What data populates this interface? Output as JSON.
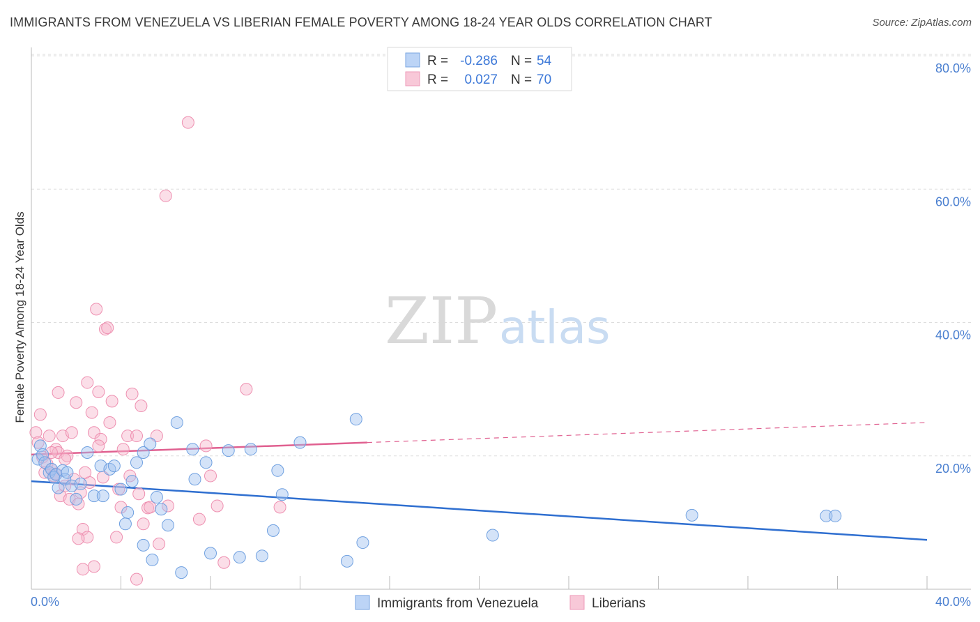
{
  "chart_data": {
    "type": "scatter",
    "title": "IMMIGRANTS FROM VENEZUELA VS LIBERIAN FEMALE POVERTY AMONG 18-24 YEAR OLDS CORRELATION CHART",
    "source": "Source: ZipAtlas.com",
    "watermark": {
      "zip": "ZIP",
      "atlas": "atlas"
    },
    "xlabel": "",
    "ylabel": "Female Poverty Among 18-24 Year Olds",
    "xlim": [
      0,
      40
    ],
    "ylim": [
      0,
      80
    ],
    "x_tick_labels": {
      "left": "0.0%",
      "right": "40.0%"
    },
    "y_ticks": [
      20,
      40,
      60,
      80
    ],
    "y_tick_labels": [
      "20.0%",
      "40.0%",
      "60.0%",
      "80.0%"
    ],
    "legend": {
      "rows": [
        {
          "r_label": "R =",
          "r_value": "-0.286",
          "n_label": "N =",
          "n_value": "54"
        },
        {
          "r_label": "R =",
          "r_value": "0.027",
          "n_label": "N =",
          "n_value": "70"
        }
      ]
    },
    "series": [
      {
        "name": "Immigrants from Venezuela",
        "color": "#9fc2f0",
        "stroke": "#6fa0e0",
        "line_color": "#2f6fd0",
        "trend": {
          "x0": 0,
          "y0": 16.2,
          "x1": 40,
          "y1": 7.4,
          "solid_to": 40
        },
        "points": [
          [
            0.3,
            19.5
          ],
          [
            0.4,
            21.5
          ],
          [
            0.5,
            20.2
          ],
          [
            0.6,
            19.0
          ],
          [
            0.8,
            17.5
          ],
          [
            0.9,
            18.0
          ],
          [
            1.0,
            16.8
          ],
          [
            1.1,
            17.2
          ],
          [
            1.2,
            15.2
          ],
          [
            1.4,
            17.8
          ],
          [
            1.5,
            16.5
          ],
          [
            1.6,
            17.5
          ],
          [
            1.8,
            15.5
          ],
          [
            2.0,
            13.5
          ],
          [
            2.2,
            15.8
          ],
          [
            2.8,
            14.0
          ],
          [
            2.5,
            20.5
          ],
          [
            3.1,
            18.5
          ],
          [
            3.2,
            14.0
          ],
          [
            3.5,
            18.0
          ],
          [
            3.7,
            18.5
          ],
          [
            4.0,
            15.0
          ],
          [
            4.3,
            11.5
          ],
          [
            4.5,
            16.2
          ],
          [
            4.7,
            19.0
          ],
          [
            5.0,
            20.5
          ],
          [
            4.2,
            9.8
          ],
          [
            5.3,
            21.8
          ],
          [
            5.6,
            13.8
          ],
          [
            5.8,
            12.0
          ],
          [
            6.1,
            9.6
          ],
          [
            6.5,
            25.0
          ],
          [
            7.2,
            21.0
          ],
          [
            7.3,
            16.5
          ],
          [
            7.8,
            19.0
          ],
          [
            8.0,
            5.4
          ],
          [
            8.8,
            20.8
          ],
          [
            9.3,
            4.8
          ],
          [
            9.8,
            21.0
          ],
          [
            10.3,
            5.0
          ],
          [
            10.8,
            8.8
          ],
          [
            11.0,
            17.8
          ],
          [
            11.2,
            14.2
          ],
          [
            12.0,
            22.0
          ],
          [
            14.1,
            4.2
          ],
          [
            14.5,
            25.5
          ],
          [
            14.8,
            7.0
          ],
          [
            20.6,
            8.1
          ],
          [
            29.5,
            11.1
          ],
          [
            35.5,
            11.0
          ],
          [
            35.9,
            11.0
          ],
          [
            5.4,
            4.4
          ],
          [
            6.7,
            2.5
          ],
          [
            5.0,
            6.6
          ]
        ]
      },
      {
        "name": "Liberians",
        "color": "#f6b6cb",
        "stroke": "#ee8fb0",
        "line_color": "#e06090",
        "trend": {
          "x0": 0,
          "y0": 20.2,
          "x1": 40,
          "y1": 25.0,
          "solid_to": 15
        },
        "points": [
          [
            0.2,
            23.5
          ],
          [
            0.3,
            22.0
          ],
          [
            0.4,
            26.2
          ],
          [
            0.5,
            19.8
          ],
          [
            0.6,
            17.5
          ],
          [
            0.7,
            18.8
          ],
          [
            0.8,
            23.0
          ],
          [
            0.9,
            18.0
          ],
          [
            1.0,
            17.0
          ],
          [
            1.1,
            21.0
          ],
          [
            1.2,
            20.5
          ],
          [
            1.3,
            14.0
          ],
          [
            1.4,
            23.0
          ],
          [
            1.5,
            15.5
          ],
          [
            1.6,
            20.0
          ],
          [
            1.7,
            13.5
          ],
          [
            1.8,
            23.5
          ],
          [
            1.9,
            16.5
          ],
          [
            2.0,
            28.0
          ],
          [
            2.1,
            12.8
          ],
          [
            2.2,
            14.5
          ],
          [
            1.2,
            29.5
          ],
          [
            2.5,
            31.0
          ],
          [
            2.6,
            16.0
          ],
          [
            2.7,
            26.5
          ],
          [
            2.8,
            23.5
          ],
          [
            2.9,
            42.0
          ],
          [
            3.0,
            29.6
          ],
          [
            3.1,
            22.5
          ],
          [
            3.2,
            16.8
          ],
          [
            3.3,
            39.0
          ],
          [
            3.4,
            39.2
          ],
          [
            3.5,
            25.0
          ],
          [
            3.6,
            28.2
          ],
          [
            3.8,
            7.8
          ],
          [
            3.9,
            15.0
          ],
          [
            4.0,
            12.3
          ],
          [
            4.1,
            21.0
          ],
          [
            4.3,
            23.0
          ],
          [
            4.4,
            17.0
          ],
          [
            4.5,
            29.3
          ],
          [
            4.7,
            23.0
          ],
          [
            4.8,
            14.3
          ],
          [
            4.9,
            27.5
          ],
          [
            5.0,
            9.8
          ],
          [
            5.2,
            12.2
          ],
          [
            5.3,
            12.3
          ],
          [
            5.6,
            23.0
          ],
          [
            5.7,
            6.8
          ],
          [
            6.0,
            59.0
          ],
          [
            6.1,
            12.5
          ],
          [
            7.0,
            70.0
          ],
          [
            7.5,
            10.5
          ],
          [
            7.8,
            21.5
          ],
          [
            8.0,
            17.0
          ],
          [
            8.3,
            12.5
          ],
          [
            8.6,
            4.0
          ],
          [
            9.6,
            30.0
          ],
          [
            11.1,
            12.3
          ],
          [
            2.3,
            9.0
          ],
          [
            2.5,
            7.8
          ],
          [
            2.1,
            7.6
          ],
          [
            2.8,
            3.4
          ],
          [
            2.3,
            3.0
          ],
          [
            4.7,
            1.5
          ],
          [
            1.5,
            19.5
          ],
          [
            0.9,
            20.5
          ],
          [
            1.1,
            17.3
          ],
          [
            2.4,
            17.5
          ],
          [
            3.0,
            21.5
          ]
        ]
      }
    ]
  }
}
